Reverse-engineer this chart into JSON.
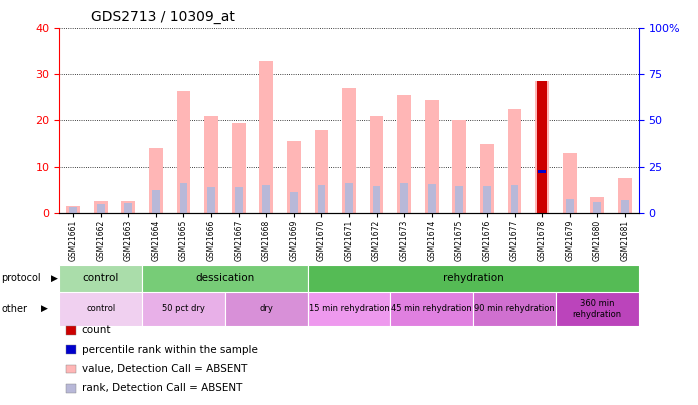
{
  "title": "GDS2713 / 10309_at",
  "samples": [
    "GSM21661",
    "GSM21662",
    "GSM21663",
    "GSM21664",
    "GSM21665",
    "GSM21666",
    "GSM21667",
    "GSM21668",
    "GSM21669",
    "GSM21670",
    "GSM21671",
    "GSM21672",
    "GSM21673",
    "GSM21674",
    "GSM21675",
    "GSM21676",
    "GSM21677",
    "GSM21678",
    "GSM21679",
    "GSM21680",
    "GSM21681"
  ],
  "value_bars": [
    1.5,
    2.5,
    2.5,
    14.0,
    26.5,
    21.0,
    19.5,
    33.0,
    15.5,
    18.0,
    27.0,
    21.0,
    25.5,
    24.5,
    20.0,
    15.0,
    22.5,
    28.5,
    13.0,
    3.5,
    7.5
  ],
  "rank_bars": [
    1.2,
    1.8,
    2.0,
    5.0,
    6.5,
    5.5,
    5.5,
    6.0,
    4.5,
    6.0,
    6.5,
    5.8,
    6.5,
    6.2,
    5.8,
    5.8,
    6.0,
    9.0,
    3.0,
    2.2,
    2.8
  ],
  "count_bar_idx": 17,
  "count_bar_value": 28.5,
  "percentile_rank_value": 9.0,
  "ylim_left": [
    0,
    40
  ],
  "ylim_right": [
    0,
    100
  ],
  "yticks_left": [
    0,
    10,
    20,
    30,
    40
  ],
  "yticks_right": [
    0,
    25,
    50,
    75,
    100
  ],
  "ytick_labels_right": [
    "0",
    "25",
    "50",
    "75",
    "100%"
  ],
  "value_bar_color": "#ffb6b6",
  "rank_bar_color": "#b8b8d8",
  "count_bar_color": "#cc0000",
  "percentile_bar_color": "#0000cc",
  "protocol_groups": [
    {
      "label": "control",
      "start": 0,
      "end": 3,
      "color": "#aaddaa"
    },
    {
      "label": "dessication",
      "start": 3,
      "end": 9,
      "color": "#77cc77"
    },
    {
      "label": "rehydration",
      "start": 9,
      "end": 21,
      "color": "#55bb55"
    }
  ],
  "other_groups": [
    {
      "label": "control",
      "start": 0,
      "end": 3,
      "color": "#f0d0f0"
    },
    {
      "label": "50 pct dry",
      "start": 3,
      "end": 6,
      "color": "#e8b0e8"
    },
    {
      "label": "dry",
      "start": 6,
      "end": 9,
      "color": "#d890d8"
    },
    {
      "label": "15 min rehydration",
      "start": 9,
      "end": 12,
      "color": "#ee99ee"
    },
    {
      "label": "45 min rehydration",
      "start": 12,
      "end": 15,
      "color": "#e080e0"
    },
    {
      "label": "90 min rehydration",
      "start": 15,
      "end": 18,
      "color": "#d070d0"
    },
    {
      "label": "360 min\nrehydration",
      "start": 18,
      "end": 21,
      "color": "#bb44bb"
    }
  ],
  "legend_items": [
    {
      "label": "count",
      "color": "#cc0000",
      "marker": "square"
    },
    {
      "label": "percentile rank within the sample",
      "color": "#0000cc",
      "marker": "square"
    },
    {
      "label": "value, Detection Call = ABSENT",
      "color": "#ffb6b6",
      "marker": "square"
    },
    {
      "label": "rank, Detection Call = ABSENT",
      "color": "#b8b8d8",
      "marker": "square"
    }
  ]
}
